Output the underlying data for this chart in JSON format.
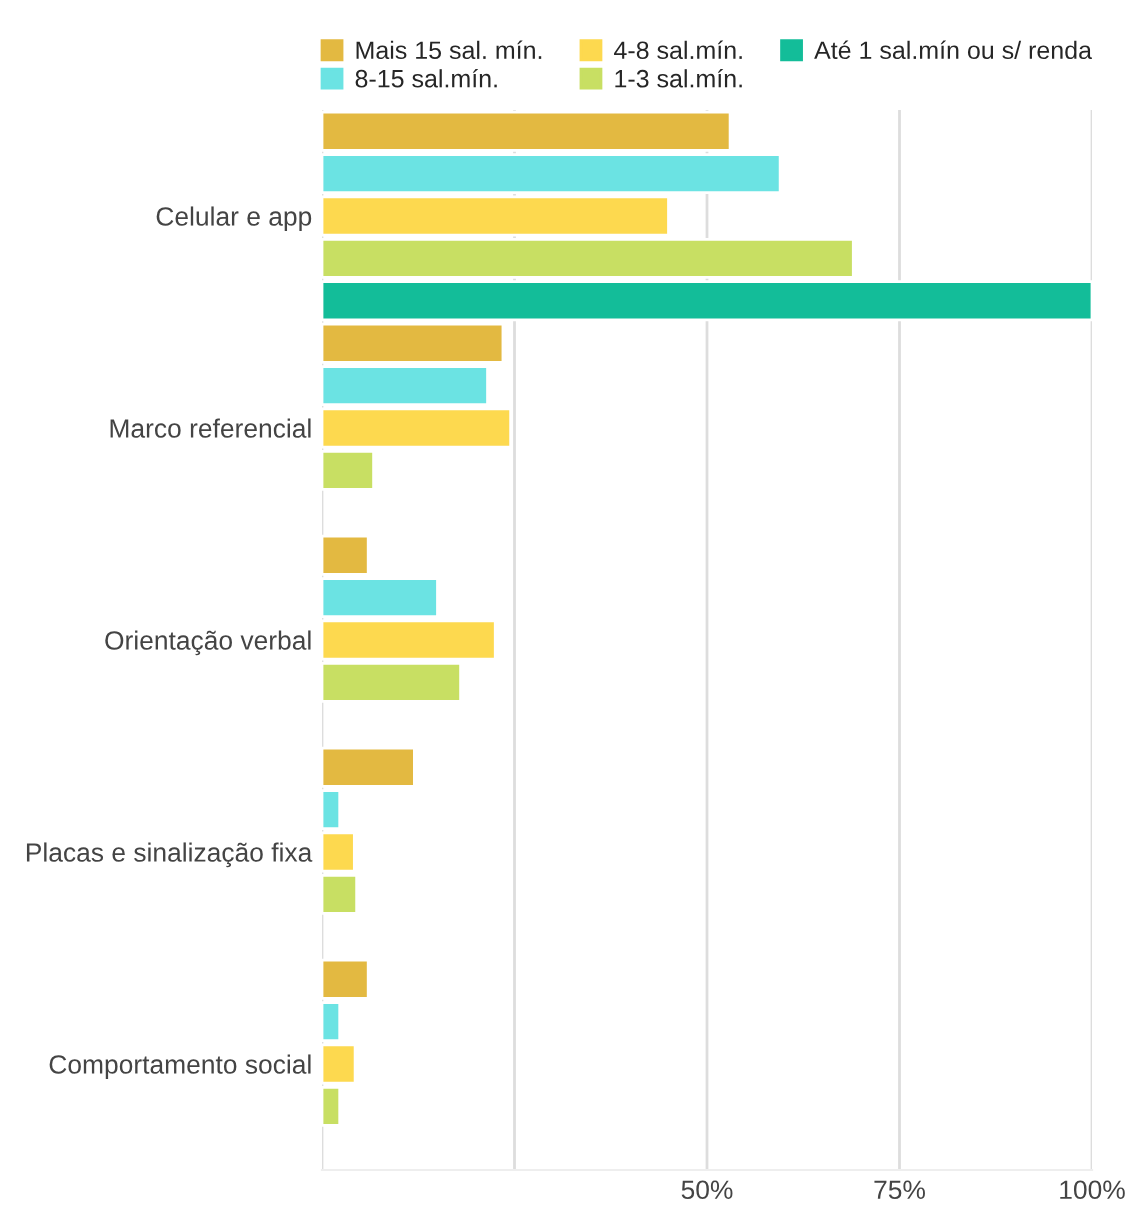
{
  "chart_data": {
    "type": "bar",
    "orientation": "horizontal",
    "categories": [
      "Celular e app",
      "Marco referencial",
      "Orientação verbal",
      "Placas e sinalização fixa",
      "Comportamento social"
    ],
    "series": [
      {
        "name": "Mais 15 sal. mín.",
        "color": "#e3b941",
        "values": [
          53,
          23.5,
          6,
          12,
          6
        ]
      },
      {
        "name": "8-15 sal.mín.",
        "color": "#6be3e3",
        "values": [
          59.5,
          21.5,
          15,
          2.3,
          2.3
        ]
      },
      {
        "name": "4-8 sal.mín.",
        "color": "#fdd94f",
        "values": [
          45,
          24.5,
          22.5,
          4.2,
          4.3
        ]
      },
      {
        "name": "1-3 sal.mín.",
        "color": "#c8df63",
        "values": [
          69,
          6.7,
          18,
          4.5,
          2.3
        ]
      },
      {
        "name": "Até 1 sal.mín ou s/ renda",
        "color": "#13bd99",
        "values": [
          100,
          null,
          null,
          null,
          null
        ]
      }
    ],
    "xlim": [
      0,
      100
    ],
    "xticks": [
      {
        "value": 0,
        "label": null
      },
      {
        "value": 25,
        "label": null
      },
      {
        "value": 50,
        "label": "50%"
      },
      {
        "value": 75,
        "label": "75%"
      },
      {
        "value": 100,
        "label": "100%"
      }
    ],
    "grid": "x",
    "legend": "top"
  }
}
